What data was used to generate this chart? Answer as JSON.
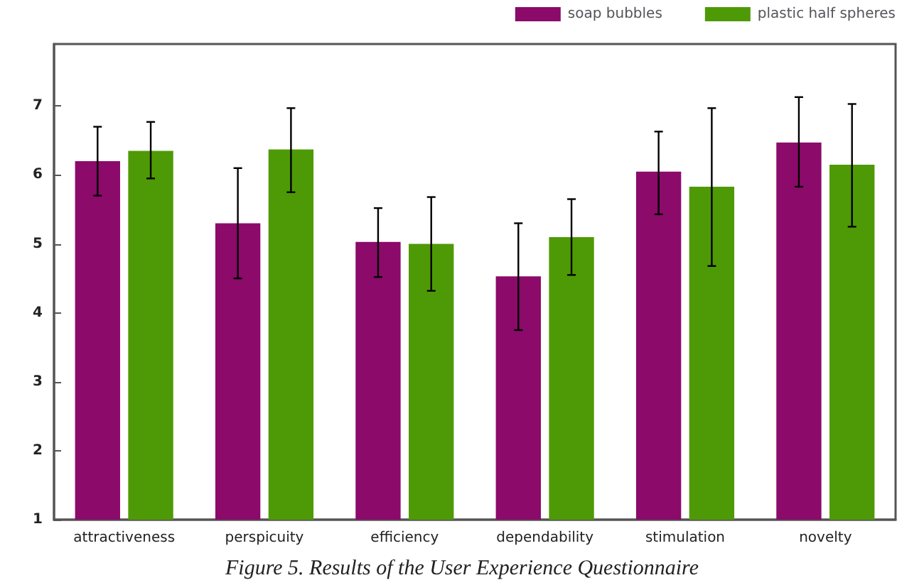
{
  "chart_data": {
    "type": "bar",
    "categories": [
      "attractiveness",
      "perspicuity",
      "efficiency",
      "dependability",
      "stimulation",
      "novelty"
    ],
    "series": [
      {
        "name": "soap bubbles",
        "color": "#8b0a6a",
        "values": [
          6.2,
          5.3,
          5.03,
          4.53,
          6.05,
          6.47
        ],
        "errors": [
          [
            5.7,
            6.7
          ],
          [
            4.5,
            6.1
          ],
          [
            4.52,
            5.52
          ],
          [
            3.75,
            5.3
          ],
          [
            5.43,
            6.63
          ],
          [
            5.83,
            7.13
          ]
        ]
      },
      {
        "name": "plastic half spheres",
        "color": "#4e9a06",
        "values": [
          6.35,
          6.37,
          5.0,
          5.1,
          5.83,
          6.15
        ],
        "errors": [
          [
            5.95,
            6.77
          ],
          [
            5.75,
            6.97
          ],
          [
            4.32,
            5.68
          ],
          [
            4.55,
            5.65
          ],
          [
            4.68,
            6.97
          ],
          [
            5.25,
            7.03
          ]
        ]
      }
    ],
    "ylim": [
      1,
      7.9
    ],
    "yticks": [
      1,
      2,
      3,
      4,
      5,
      6,
      7
    ],
    "grid": false,
    "legend": "top right",
    "annotations": [
      "Figure 5. Results of the User Experience Questionnaire"
    ]
  }
}
